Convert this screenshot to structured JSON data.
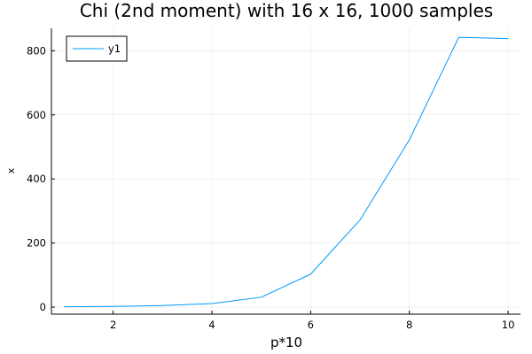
{
  "chart_data": {
    "type": "line",
    "title": "Chi (2nd moment) with 16 x 16, 1000 samples",
    "xlabel": "p*10",
    "ylabel": "x",
    "xlim": [
      0.75,
      10.25
    ],
    "ylim": [
      -22,
      870
    ],
    "xticks": [
      2,
      4,
      6,
      8,
      10
    ],
    "yticks": [
      0,
      200,
      400,
      600,
      800
    ],
    "grid": true,
    "legend_position": "top-left",
    "series": [
      {
        "name": "y1",
        "color": "#009af9",
        "x": [
          1,
          2,
          3,
          4,
          5,
          6,
          7,
          8,
          9,
          10
        ],
        "y": [
          1,
          2,
          5,
          11,
          31,
          103,
          272,
          522,
          842,
          838
        ]
      }
    ]
  }
}
